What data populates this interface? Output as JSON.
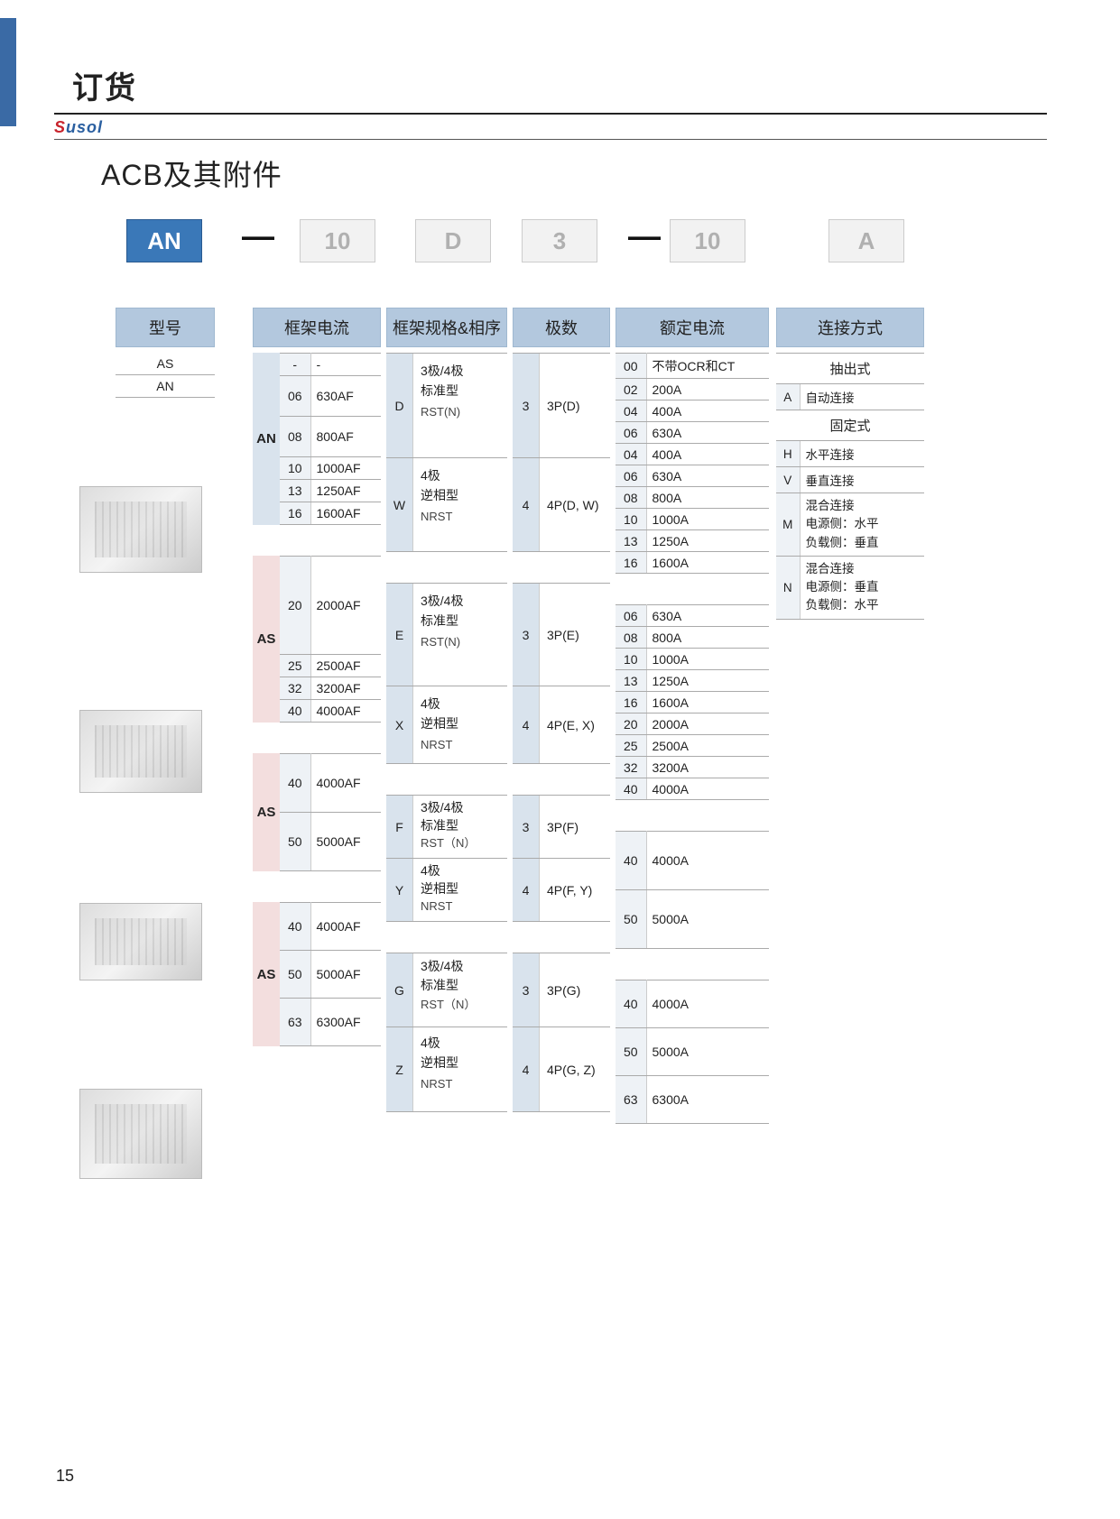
{
  "page": {
    "title": "订货",
    "brand_a": "S",
    "brand_b": "usol",
    "product": "ACB及其附件",
    "page_number": "15"
  },
  "code_boxes": {
    "c1": "AN",
    "dash1": "—",
    "c2": "10",
    "c3": "D",
    "c4": "3",
    "dash2": "—",
    "c5": "10",
    "c6": "A"
  },
  "headers": {
    "model": "型号",
    "frame": "框架电流",
    "spec": "框架规格&相序",
    "poles": "极数",
    "rated": "额定电流",
    "conn": "连接方式"
  },
  "model": {
    "items": [
      "AS",
      "AN"
    ]
  },
  "frame": {
    "g1": {
      "label": "AN",
      "rows": [
        [
          "-",
          "-"
        ],
        [
          "06",
          "630AF"
        ],
        [
          "08",
          "800AF"
        ],
        [
          "10",
          "1000AF"
        ],
        [
          "13",
          "1250AF"
        ],
        [
          "16",
          "1600AF"
        ]
      ]
    },
    "g2": {
      "label": "AS",
      "rows": [
        [
          "20",
          "2000AF"
        ],
        [
          "25",
          "2500AF"
        ],
        [
          "32",
          "3200AF"
        ],
        [
          "40",
          "4000AF"
        ]
      ]
    },
    "g3": {
      "label": "AS",
      "rows": [
        [
          "40",
          "4000AF"
        ],
        [
          "50",
          "5000AF"
        ]
      ]
    },
    "g4": {
      "label": "AS",
      "rows": [
        [
          "40",
          "4000AF"
        ],
        [
          "50",
          "5000AF"
        ],
        [
          "63",
          "6300AF"
        ]
      ]
    }
  },
  "spec": {
    "g1": [
      {
        "c": "D",
        "l1": "3极/4极",
        "l2": "标准型",
        "l3": "RST(N)"
      },
      {
        "c": "W",
        "l1": "4极",
        "l2": "逆相型",
        "l3": "NRST"
      }
    ],
    "g2": [
      {
        "c": "E",
        "l1": "3极/4极",
        "l2": "标准型",
        "l3": "RST(N)"
      },
      {
        "c": "X",
        "l1": "4极",
        "l2": "逆相型",
        "l3": "NRST"
      }
    ],
    "g3": [
      {
        "c": "F",
        "l1": "3极/4极",
        "l2": "标准型",
        "l3": "RST（N）"
      },
      {
        "c": "Y",
        "l1": "4极",
        "l2": "逆相型",
        "l3": "NRST"
      }
    ],
    "g4": [
      {
        "c": "G",
        "l1": "3极/4极",
        "l2": "标准型",
        "l3": "RST（N）"
      },
      {
        "c": "Z",
        "l1": "4极",
        "l2": "逆相型",
        "l3": "NRST"
      }
    ]
  },
  "poles": {
    "g1": [
      {
        "c": "3",
        "t": "3P(D)"
      },
      {
        "c": "4",
        "t": "4P(D, W)"
      }
    ],
    "g2": [
      {
        "c": "3",
        "t": "3P(E)"
      },
      {
        "c": "4",
        "t": "4P(E, X)"
      }
    ],
    "g3": [
      {
        "c": "3",
        "t": "3P(F)"
      },
      {
        "c": "4",
        "t": "4P(F, Y)"
      }
    ],
    "g4": [
      {
        "c": "3",
        "t": "3P(G)"
      },
      {
        "c": "4",
        "t": "4P(G, Z)"
      }
    ]
  },
  "rated": {
    "g1": [
      [
        "00",
        "不带OCR和CT"
      ],
      [
        "02",
        "200A"
      ],
      [
        "04",
        "400A"
      ],
      [
        "06",
        "630A"
      ],
      [
        "04",
        "400A"
      ],
      [
        "06",
        "630A"
      ],
      [
        "08",
        "800A"
      ],
      [
        "10",
        "1000A"
      ],
      [
        "13",
        "1250A"
      ],
      [
        "16",
        "1600A"
      ]
    ],
    "g2": [
      [
        "06",
        "630A"
      ],
      [
        "08",
        "800A"
      ],
      [
        "10",
        "1000A"
      ],
      [
        "13",
        "1250A"
      ],
      [
        "16",
        "1600A"
      ],
      [
        "20",
        "2000A"
      ],
      [
        "25",
        "2500A"
      ],
      [
        "32",
        "3200A"
      ],
      [
        "40",
        "4000A"
      ]
    ],
    "g3": [
      [
        "40",
        "4000A"
      ],
      [
        "50",
        "5000A"
      ]
    ],
    "g4": [
      [
        "40",
        "4000A"
      ],
      [
        "50",
        "5000A"
      ],
      [
        "63",
        "6300A"
      ]
    ]
  },
  "conn": {
    "sub1": "抽出式",
    "r1": [
      [
        "A",
        "自动连接"
      ]
    ],
    "sub2": "固定式",
    "r2": [
      [
        "H",
        "水平连接"
      ],
      [
        "V",
        "垂直连接"
      ]
    ],
    "r3": {
      "c": "M",
      "t": "混合连接\n电源侧：水平\n负载侧：垂直"
    },
    "r4": {
      "c": "N",
      "t": "混合连接\n电源侧：垂直\n负载侧：水平"
    }
  }
}
